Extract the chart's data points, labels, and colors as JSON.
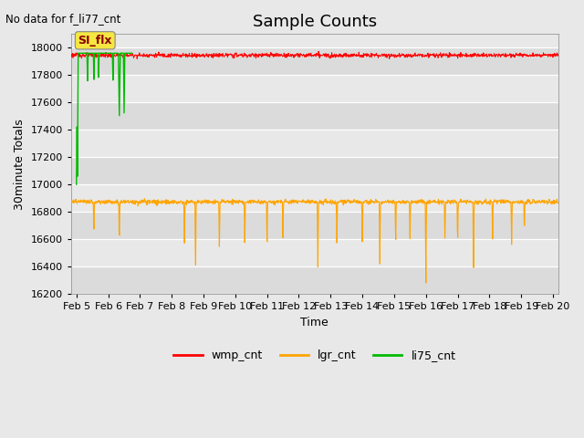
{
  "title": "Sample Counts",
  "ylabel": "30minute Totals",
  "xlabel": "Time",
  "no_data_text": "No data for f_li77_cnt",
  "annotation_text": "SI_flx",
  "ylim": [
    16200,
    18100
  ],
  "xlim_days": [
    4.83,
    20.17
  ],
  "x_ticks": [
    5,
    6,
    7,
    8,
    9,
    10,
    11,
    12,
    13,
    14,
    15,
    16,
    17,
    18,
    19,
    20
  ],
  "x_tick_labels": [
    "Feb 5",
    "Feb 6",
    "Feb 7",
    "Feb 8",
    "Feb 9",
    "Feb 10",
    "Feb 11",
    "Feb 12",
    "Feb 13",
    "Feb 14",
    "Feb 15",
    "Feb 16",
    "Feb 17",
    "Feb 18",
    "Feb 19",
    "Feb 20"
  ],
  "y_ticks": [
    16200,
    16400,
    16600,
    16800,
    17000,
    17200,
    17400,
    17600,
    17800,
    18000
  ],
  "wmp_color": "#ff0000",
  "lgr_color": "#ffa500",
  "li75_color": "#00bb00",
  "fig_bg_color": "#e8e8e8",
  "plot_bg_color": "#e8e8e8",
  "grid_color": "#ffffff",
  "legend_entries": [
    "wmp_cnt",
    "lgr_cnt",
    "li75_cnt"
  ],
  "wmp_base": 17945,
  "wmp_noise": 8,
  "lgr_base": 16873,
  "lgr_noise": 8,
  "title_fontsize": 13,
  "tick_fontsize": 8,
  "label_fontsize": 9
}
